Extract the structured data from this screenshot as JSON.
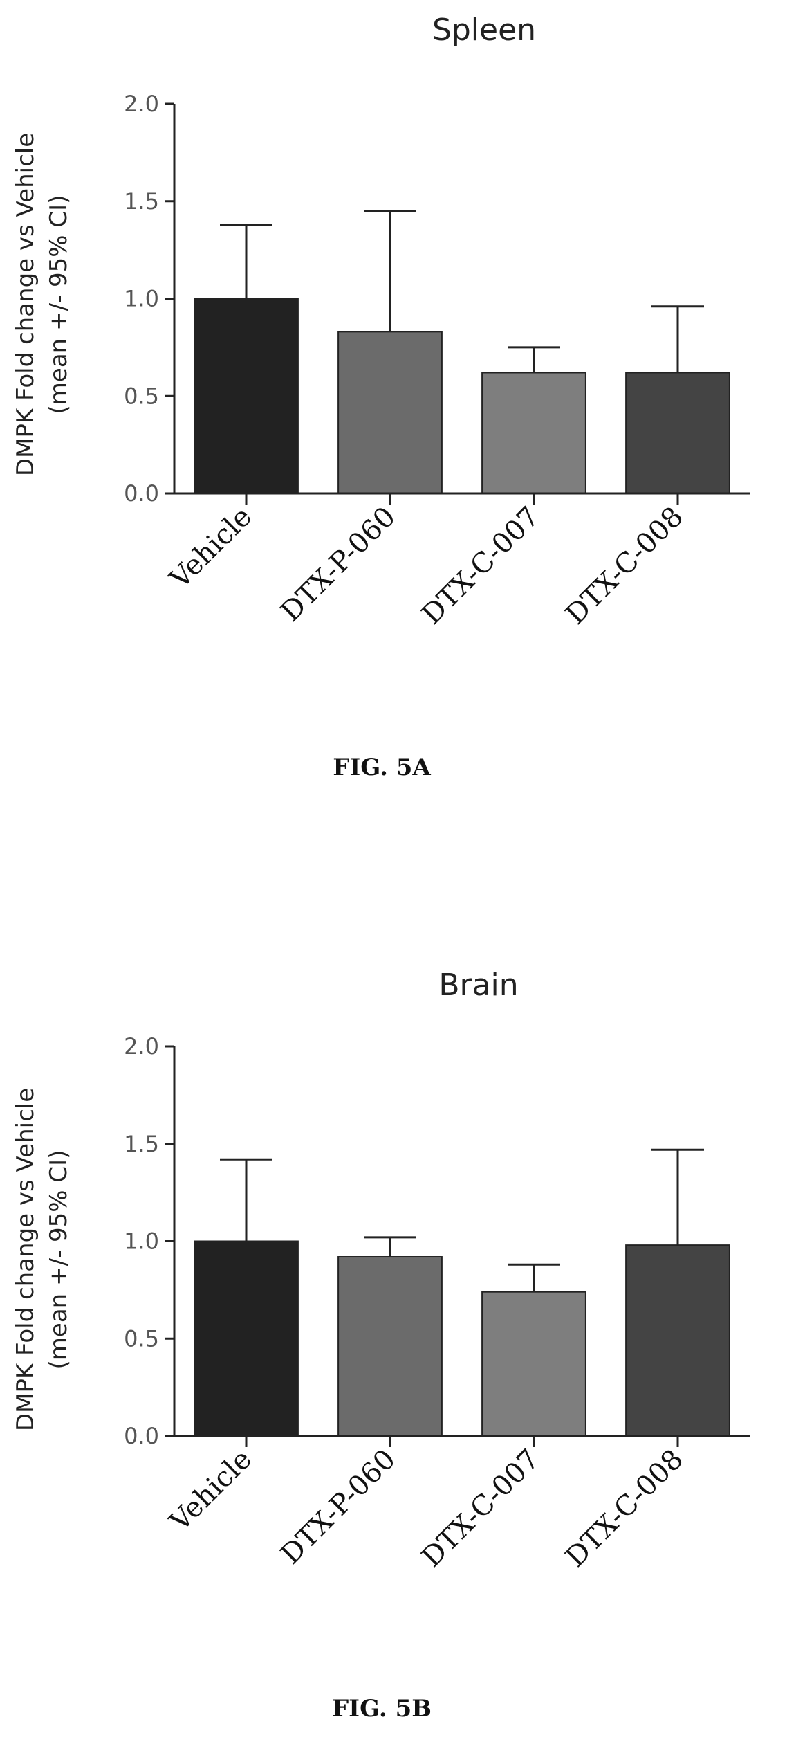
{
  "chart_data": [
    {
      "type": "bar",
      "title": "Spleen",
      "ylabel": [
        "DMPK Fold change vs Vehicle",
        "(mean +/- 95% CI)"
      ],
      "categories": [
        "Vehicle",
        "DTX-P-060",
        "DTX-C-007",
        "DTX-C-008"
      ],
      "values": [
        1.0,
        0.83,
        0.62,
        0.62
      ],
      "error_upper": [
        1.38,
        1.45,
        0.75,
        0.96
      ],
      "yticks": [
        "0.0",
        "0.5",
        "1.0",
        "1.5",
        "2.0"
      ],
      "ylim": [
        0,
        2.0
      ],
      "colors": [
        "#222222",
        "#6b6b6b",
        "#7e7e7e",
        "#444444"
      ],
      "figure_label": "FIG. 5A"
    },
    {
      "type": "bar",
      "title": "Brain",
      "ylabel": [
        "DMPK Fold change vs Vehicle",
        "(mean +/- 95% CI)"
      ],
      "categories": [
        "Vehicle",
        "DTX-P-060",
        "DTX-C-007",
        "DTX-C-008"
      ],
      "values": [
        1.0,
        0.92,
        0.74,
        0.98
      ],
      "error_upper": [
        1.42,
        1.02,
        0.88,
        1.47
      ],
      "yticks": [
        "0.0",
        "0.5",
        "1.0",
        "1.5",
        "2.0"
      ],
      "ylim": [
        0,
        2.0
      ],
      "colors": [
        "#222222",
        "#6b6b6b",
        "#7e7e7e",
        "#444444"
      ],
      "figure_label": "FIG. 5B"
    }
  ]
}
